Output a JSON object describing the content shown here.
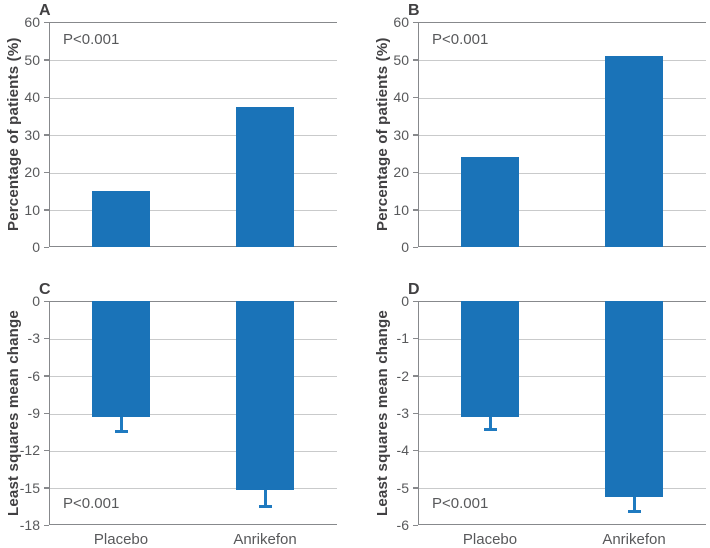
{
  "figure": {
    "background": "#ffffff",
    "bar_color": "#1a73b8",
    "error_bar_color": "#1f7ac0",
    "spine_color": "#87898c",
    "grid_color": "#c9cacb",
    "tick_text_color": "#58595b",
    "title_text_color": "#414042"
  },
  "chart_data": [
    {
      "panel": "A",
      "type": "bar",
      "title": "",
      "ylabel": "Percentage of patients (%)",
      "xlabel": "",
      "p_value": "P<0.001",
      "p_position": "top-left",
      "categories": [
        "Placebo",
        "Anrikefon"
      ],
      "values": [
        15,
        37.3
      ],
      "errors": null,
      "ylim": [
        0,
        60
      ],
      "yticks": [
        60,
        50,
        40,
        30,
        20,
        10,
        0
      ],
      "x_tick_labels_visible": false,
      "grid": true,
      "legend": false
    },
    {
      "panel": "B",
      "type": "bar",
      "title": "",
      "ylabel": "Percentage of patients (%)",
      "xlabel": "",
      "p_value": "P<0.001",
      "p_position": "top-left",
      "categories": [
        "Placebo",
        "Anrikefon"
      ],
      "values": [
        24,
        51
      ],
      "errors": null,
      "ylim": [
        0,
        60
      ],
      "yticks": [
        60,
        50,
        40,
        30,
        20,
        10,
        0
      ],
      "x_tick_labels_visible": false,
      "grid": true,
      "legend": false
    },
    {
      "panel": "C",
      "type": "bar",
      "title": "",
      "ylabel": "Least squares mean change",
      "xlabel": "",
      "p_value": "P<0.001",
      "p_position": "bottom-left",
      "categories": [
        "Placebo",
        "Anrikefon"
      ],
      "values": [
        -9.3,
        -15.2
      ],
      "errors": [
        1.2,
        1.3
      ],
      "ylim": [
        -18,
        0
      ],
      "yticks": [
        0,
        -3,
        -6,
        -9,
        -12,
        -15,
        -18
      ],
      "x_tick_labels_visible": true,
      "grid": true,
      "legend": false
    },
    {
      "panel": "D",
      "type": "bar",
      "title": "",
      "ylabel": "Least squares mean change",
      "xlabel": "",
      "p_value": "P<0.001",
      "p_position": "bottom-left",
      "categories": [
        "Placebo",
        "Anrikefon"
      ],
      "values": [
        -3.1,
        -5.25
      ],
      "errors": [
        0.35,
        0.4
      ],
      "ylim": [
        -6,
        0
      ],
      "yticks": [
        0,
        -1,
        -2,
        -3,
        -4,
        -5,
        -6
      ],
      "x_tick_labels_visible": true,
      "grid": true,
      "legend": false
    }
  ]
}
